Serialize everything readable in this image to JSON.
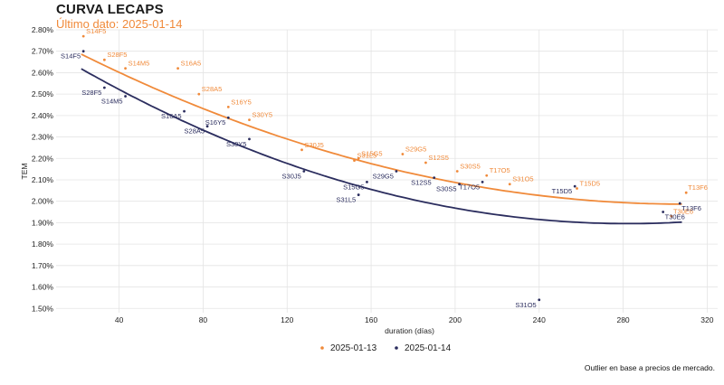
{
  "title": "CURVA LECAPS",
  "subtitle": "Último dato: 2025-01-14",
  "footnote": "Outlier en base a precios de mercado.",
  "colors": {
    "s1": "#f08a3a",
    "s2": "#2b2d5e",
    "grid": "#e4e4e4"
  },
  "chart_data": {
    "type": "scatter",
    "title": "CURVA LECAPS",
    "xlabel": "duration (días)",
    "ylabel": "TEM",
    "xlim": [
      10,
      325
    ],
    "ylim": [
      1.48,
      2.8
    ],
    "xticks": [
      40,
      80,
      120,
      160,
      200,
      240,
      280,
      320
    ],
    "yticks": [
      1.5,
      1.6,
      1.7,
      1.8,
      1.9,
      2.0,
      2.1,
      2.2,
      2.3,
      2.4,
      2.5,
      2.6,
      2.7,
      2.8
    ],
    "ytick_labels": [
      "1.50%",
      "1.60%",
      "1.70%",
      "1.80%",
      "1.90%",
      "2.00%",
      "2.10%",
      "2.20%",
      "2.30%",
      "2.40%",
      "2.50%",
      "2.60%",
      "2.70%",
      "2.80%"
    ],
    "legend": [
      "2025-01-13",
      "2025-01-14"
    ],
    "series": [
      {
        "name": "2025-01-13",
        "fit": {
          "a": 2.7976,
          "b": -0.0052434,
          "c": 8.474e-06
        },
        "fit_range": [
          22,
          308
        ],
        "points": [
          {
            "label": "S14F5",
            "x": 23,
            "y": 2.77
          },
          {
            "label": "S28F5",
            "x": 33,
            "y": 2.66
          },
          {
            "label": "S14M5",
            "x": 43,
            "y": 2.62
          },
          {
            "label": "S16A5",
            "x": 68,
            "y": 2.62
          },
          {
            "label": "S28A5",
            "x": 78,
            "y": 2.5
          },
          {
            "label": "S16Y5",
            "x": 92,
            "y": 2.44
          },
          {
            "label": "S30Y5",
            "x": 102,
            "y": 2.38
          },
          {
            "label": "S30J5",
            "x": 127,
            "y": 2.24
          },
          {
            "label": "S31L5",
            "x": 152,
            "y": 2.19
          },
          {
            "label": "S15G5",
            "x": 154,
            "y": 2.2
          },
          {
            "label": "S29G5",
            "x": 175,
            "y": 2.22
          },
          {
            "label": "S12S5",
            "x": 186,
            "y": 2.18
          },
          {
            "label": "S30S5",
            "x": 201,
            "y": 2.14
          },
          {
            "label": "T17O5",
            "x": 215,
            "y": 2.12
          },
          {
            "label": "S31O5",
            "x": 226,
            "y": 2.08
          },
          {
            "label": "T15D5",
            "x": 258,
            "y": 2.06
          },
          {
            "label": "T13F6",
            "x": 310,
            "y": 2.04
          },
          {
            "label": "T30E6",
            "x": 303,
            "y": 1.93
          }
        ]
      },
      {
        "name": "2025-01-14",
        "fit": {
          "a": 2.7453,
          "b": -0.0060178,
          "c": 1.0656e-05
        },
        "fit_range": [
          22,
          308
        ],
        "points": [
          {
            "label": "S14F5",
            "x": 23,
            "y": 2.7
          },
          {
            "label": "S28F5",
            "x": 33,
            "y": 2.53
          },
          {
            "label": "S14M5",
            "x": 43,
            "y": 2.49
          },
          {
            "label": "S16A5",
            "x": 71,
            "y": 2.42
          },
          {
            "label": "S28A5",
            "x": 82,
            "y": 2.35
          },
          {
            "label": "S16Y5",
            "x": 92,
            "y": 2.39
          },
          {
            "label": "S30Y5",
            "x": 102,
            "y": 2.29
          },
          {
            "label": "S30J5",
            "x": 128,
            "y": 2.14
          },
          {
            "label": "S15G5",
            "x": 158,
            "y": 2.09
          },
          {
            "label": "S31L5",
            "x": 154,
            "y": 2.03
          },
          {
            "label": "S29G5",
            "x": 172,
            "y": 2.14
          },
          {
            "label": "S12S5",
            "x": 190,
            "y": 2.11
          },
          {
            "label": "S30S5",
            "x": 202,
            "y": 2.08
          },
          {
            "label": "T17O5",
            "x": 213,
            "y": 2.09
          },
          {
            "label": "S31O5",
            "x": 240,
            "y": 1.54
          },
          {
            "label": "T15D5",
            "x": 257,
            "y": 2.07
          },
          {
            "label": "T13F6",
            "x": 307,
            "y": 1.99
          },
          {
            "label": "T30E6",
            "x": 299,
            "y": 1.95
          }
        ]
      }
    ]
  }
}
